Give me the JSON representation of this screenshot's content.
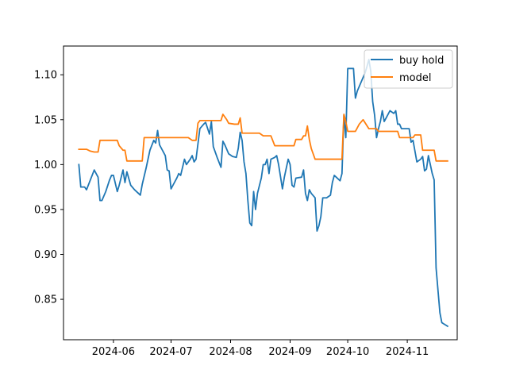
{
  "chart_data": {
    "type": "line",
    "title": "",
    "xlabel": "",
    "ylabel": "",
    "xlim": [
      "2024-05-06",
      "2024-11-27"
    ],
    "ylim": [
      0.805,
      1.132
    ],
    "grid": false,
    "legend": {
      "placement": "top-right"
    },
    "x_ticks": [
      {
        "date": "2024-06-01",
        "label": "2024-06"
      },
      {
        "date": "2024-07-01",
        "label": "2024-07"
      },
      {
        "date": "2024-08-01",
        "label": "2024-08"
      },
      {
        "date": "2024-09-01",
        "label": "2024-09"
      },
      {
        "date": "2024-10-01",
        "label": "2024-10"
      },
      {
        "date": "2024-11-01",
        "label": "2024-11"
      }
    ],
    "y_ticks": [
      {
        "value": 0.85,
        "label": "0.85"
      },
      {
        "value": 0.9,
        "label": "0.90"
      },
      {
        "value": 0.95,
        "label": "0.95"
      },
      {
        "value": 1.0,
        "label": "1.00"
      },
      {
        "value": 1.05,
        "label": "1.05"
      },
      {
        "value": 1.1,
        "label": "1.10"
      }
    ],
    "series": [
      {
        "name": "buy hold",
        "color": "#1f77b4",
        "points": [
          [
            "2024-05-14",
            1.0
          ],
          [
            "2024-05-15",
            0.975
          ],
          [
            "2024-05-17",
            0.975
          ],
          [
            "2024-05-18",
            0.972
          ],
          [
            "2024-05-20",
            0.983
          ],
          [
            "2024-05-22",
            0.994
          ],
          [
            "2024-05-24",
            0.986
          ],
          [
            "2024-05-25",
            0.96
          ],
          [
            "2024-05-26",
            0.96
          ],
          [
            "2024-05-28",
            0.97
          ],
          [
            "2024-05-30",
            0.983
          ],
          [
            "2024-05-31",
            0.988
          ],
          [
            "2024-06-01",
            0.988
          ],
          [
            "2024-06-03",
            0.97
          ],
          [
            "2024-06-04",
            0.977
          ],
          [
            "2024-06-06",
            0.994
          ],
          [
            "2024-06-07",
            0.98
          ],
          [
            "2024-06-08",
            0.992
          ],
          [
            "2024-06-10",
            0.977
          ],
          [
            "2024-06-12",
            0.972
          ],
          [
            "2024-06-15",
            0.966
          ],
          [
            "2024-06-16",
            0.978
          ],
          [
            "2024-06-18",
            0.996
          ],
          [
            "2024-06-20",
            1.016
          ],
          [
            "2024-06-22",
            1.027
          ],
          [
            "2024-06-23",
            1.024
          ],
          [
            "2024-06-24",
            1.038
          ],
          [
            "2024-06-25",
            1.022
          ],
          [
            "2024-06-26",
            1.018
          ],
          [
            "2024-06-28",
            1.01
          ],
          [
            "2024-06-29",
            0.994
          ],
          [
            "2024-06-30",
            0.993
          ],
          [
            "2024-07-01",
            0.973
          ],
          [
            "2024-07-02",
            0.977
          ],
          [
            "2024-07-04",
            0.985
          ],
          [
            "2024-07-05",
            0.99
          ],
          [
            "2024-07-06",
            0.988
          ],
          [
            "2024-07-08",
            1.006
          ],
          [
            "2024-07-09",
            1.0
          ],
          [
            "2024-07-11",
            1.006
          ],
          [
            "2024-07-12",
            1.01
          ],
          [
            "2024-07-13",
            1.003
          ],
          [
            "2024-07-14",
            1.006
          ],
          [
            "2024-07-16",
            1.04
          ],
          [
            "2024-07-18",
            1.045
          ],
          [
            "2024-07-19",
            1.047
          ],
          [
            "2024-07-21",
            1.034
          ],
          [
            "2024-07-22",
            1.048
          ],
          [
            "2024-07-23",
            1.02
          ],
          [
            "2024-07-25",
            1.008
          ],
          [
            "2024-07-27",
            0.997
          ],
          [
            "2024-07-28",
            1.026
          ],
          [
            "2024-07-29",
            1.022
          ],
          [
            "2024-07-31",
            1.012
          ],
          [
            "2024-08-02",
            1.009
          ],
          [
            "2024-08-04",
            1.008
          ],
          [
            "2024-08-05",
            1.018
          ],
          [
            "2024-08-06",
            1.036
          ],
          [
            "2024-08-07",
            1.027
          ],
          [
            "2024-08-08",
            1.003
          ],
          [
            "2024-08-09",
            0.99
          ],
          [
            "2024-08-10",
            0.96
          ],
          [
            "2024-08-11",
            0.935
          ],
          [
            "2024-08-12",
            0.932
          ],
          [
            "2024-08-13",
            0.97
          ],
          [
            "2024-08-14",
            0.95
          ],
          [
            "2024-08-15",
            0.968
          ],
          [
            "2024-08-17",
            0.985
          ],
          [
            "2024-08-18",
            1.0
          ],
          [
            "2024-08-19",
            1.0
          ],
          [
            "2024-08-20",
            1.006
          ],
          [
            "2024-08-21",
            0.99
          ],
          [
            "2024-08-22",
            1.006
          ],
          [
            "2024-08-24",
            1.008
          ],
          [
            "2024-08-25",
            1.01
          ],
          [
            "2024-08-26",
            1.0
          ],
          [
            "2024-08-28",
            0.973
          ],
          [
            "2024-08-29",
            0.986
          ],
          [
            "2024-08-31",
            1.006
          ],
          [
            "2024-09-01",
            1.0
          ],
          [
            "2024-09-02",
            0.977
          ],
          [
            "2024-09-03",
            0.975
          ],
          [
            "2024-09-04",
            0.985
          ],
          [
            "2024-09-07",
            0.986
          ],
          [
            "2024-09-08",
            0.994
          ],
          [
            "2024-09-09",
            0.968
          ],
          [
            "2024-09-10",
            0.96
          ],
          [
            "2024-09-11",
            0.972
          ],
          [
            "2024-09-12",
            0.968
          ],
          [
            "2024-09-14",
            0.963
          ],
          [
            "2024-09-15",
            0.926
          ],
          [
            "2024-09-16",
            0.932
          ],
          [
            "2024-09-17",
            0.942
          ],
          [
            "2024-09-18",
            0.963
          ],
          [
            "2024-09-20",
            0.963
          ],
          [
            "2024-09-22",
            0.966
          ],
          [
            "2024-09-23",
            0.98
          ],
          [
            "2024-09-24",
            0.988
          ],
          [
            "2024-09-27",
            0.982
          ],
          [
            "2024-09-28",
            0.99
          ],
          [
            "2024-09-29",
            1.055
          ],
          [
            "2024-09-30",
            1.03
          ],
          [
            "2024-10-01",
            1.107
          ],
          [
            "2024-10-02",
            1.107
          ],
          [
            "2024-10-03",
            1.107
          ],
          [
            "2024-10-04",
            1.107
          ],
          [
            "2024-10-05",
            1.074
          ],
          [
            "2024-10-06",
            1.082
          ],
          [
            "2024-10-10",
            1.102
          ],
          [
            "2024-10-11",
            1.109
          ],
          [
            "2024-10-12",
            1.117
          ],
          [
            "2024-10-13",
            1.104
          ],
          [
            "2024-10-14",
            1.07
          ],
          [
            "2024-10-15",
            1.055
          ],
          [
            "2024-10-16",
            1.03
          ],
          [
            "2024-10-17",
            1.04
          ],
          [
            "2024-10-18",
            1.048
          ],
          [
            "2024-10-19",
            1.06
          ],
          [
            "2024-10-20",
            1.048
          ],
          [
            "2024-10-21",
            1.052
          ],
          [
            "2024-10-23",
            1.06
          ],
          [
            "2024-10-25",
            1.057
          ],
          [
            "2024-10-26",
            1.06
          ],
          [
            "2024-10-27",
            1.045
          ],
          [
            "2024-10-28",
            1.045
          ],
          [
            "2024-10-29",
            1.04
          ],
          [
            "2024-11-02",
            1.04
          ],
          [
            "2024-11-03",
            1.025
          ],
          [
            "2024-11-04",
            1.027
          ],
          [
            "2024-11-05",
            1.015
          ],
          [
            "2024-11-06",
            1.003
          ],
          [
            "2024-11-08",
            1.006
          ],
          [
            "2024-11-09",
            1.009
          ],
          [
            "2024-11-10",
            0.993
          ],
          [
            "2024-11-11",
            0.995
          ],
          [
            "2024-11-12",
            1.01
          ],
          [
            "2024-11-13",
            1.0
          ],
          [
            "2024-11-14",
            0.99
          ],
          [
            "2024-11-15",
            0.983
          ],
          [
            "2024-11-16",
            0.885
          ],
          [
            "2024-11-17",
            0.86
          ],
          [
            "2024-11-18",
            0.835
          ],
          [
            "2024-11-19",
            0.824
          ],
          [
            "2024-11-22",
            0.82
          ]
        ]
      },
      {
        "name": "model",
        "color": "#ff7f0e",
        "points": [
          [
            "2024-05-14",
            1.017
          ],
          [
            "2024-05-18",
            1.017
          ],
          [
            "2024-05-20",
            1.015
          ],
          [
            "2024-05-22",
            1.014
          ],
          [
            "2024-05-24",
            1.014
          ],
          [
            "2024-05-25",
            1.027
          ],
          [
            "2024-06-01",
            1.027
          ],
          [
            "2024-06-03",
            1.027
          ],
          [
            "2024-06-04",
            1.021
          ],
          [
            "2024-06-06",
            1.016
          ],
          [
            "2024-06-07",
            1.016
          ],
          [
            "2024-06-08",
            1.004
          ],
          [
            "2024-06-16",
            1.004
          ],
          [
            "2024-06-17",
            1.03
          ],
          [
            "2024-06-24",
            1.03
          ],
          [
            "2024-07-10",
            1.03
          ],
          [
            "2024-07-12",
            1.027
          ],
          [
            "2024-07-14",
            1.027
          ],
          [
            "2024-07-15",
            1.046
          ],
          [
            "2024-07-16",
            1.049
          ],
          [
            "2024-07-17",
            1.049
          ],
          [
            "2024-07-27",
            1.049
          ],
          [
            "2024-07-28",
            1.056
          ],
          [
            "2024-07-30",
            1.05
          ],
          [
            "2024-07-31",
            1.046
          ],
          [
            "2024-08-03",
            1.045
          ],
          [
            "2024-08-05",
            1.045
          ],
          [
            "2024-08-06",
            1.052
          ],
          [
            "2024-08-07",
            1.035
          ],
          [
            "2024-08-16",
            1.035
          ],
          [
            "2024-08-18",
            1.032
          ],
          [
            "2024-08-22",
            1.032
          ],
          [
            "2024-08-24",
            1.021
          ],
          [
            "2024-09-01",
            1.021
          ],
          [
            "2024-09-03",
            1.021
          ],
          [
            "2024-09-04",
            1.028
          ],
          [
            "2024-09-07",
            1.028
          ],
          [
            "2024-09-08",
            1.032
          ],
          [
            "2024-09-09",
            1.032
          ],
          [
            "2024-09-10",
            1.043
          ],
          [
            "2024-09-11",
            1.028
          ],
          [
            "2024-09-12",
            1.018
          ],
          [
            "2024-09-14",
            1.006
          ],
          [
            "2024-09-28",
            1.006
          ],
          [
            "2024-09-29",
            1.056
          ],
          [
            "2024-09-30",
            1.048
          ],
          [
            "2024-10-01",
            1.037
          ],
          [
            "2024-10-02",
            1.037
          ],
          [
            "2024-10-05",
            1.037
          ],
          [
            "2024-10-07",
            1.045
          ],
          [
            "2024-10-09",
            1.05
          ],
          [
            "2024-10-12",
            1.04
          ],
          [
            "2024-10-16",
            1.04
          ],
          [
            "2024-10-17",
            1.037
          ],
          [
            "2024-10-27",
            1.037
          ],
          [
            "2024-10-28",
            1.03
          ],
          [
            "2024-11-02",
            1.03
          ],
          [
            "2024-11-04",
            1.03
          ],
          [
            "2024-11-05",
            1.033
          ],
          [
            "2024-11-08",
            1.033
          ],
          [
            "2024-11-09",
            1.016
          ],
          [
            "2024-11-15",
            1.016
          ],
          [
            "2024-11-16",
            1.004
          ],
          [
            "2024-11-22",
            1.004
          ]
        ]
      }
    ]
  }
}
